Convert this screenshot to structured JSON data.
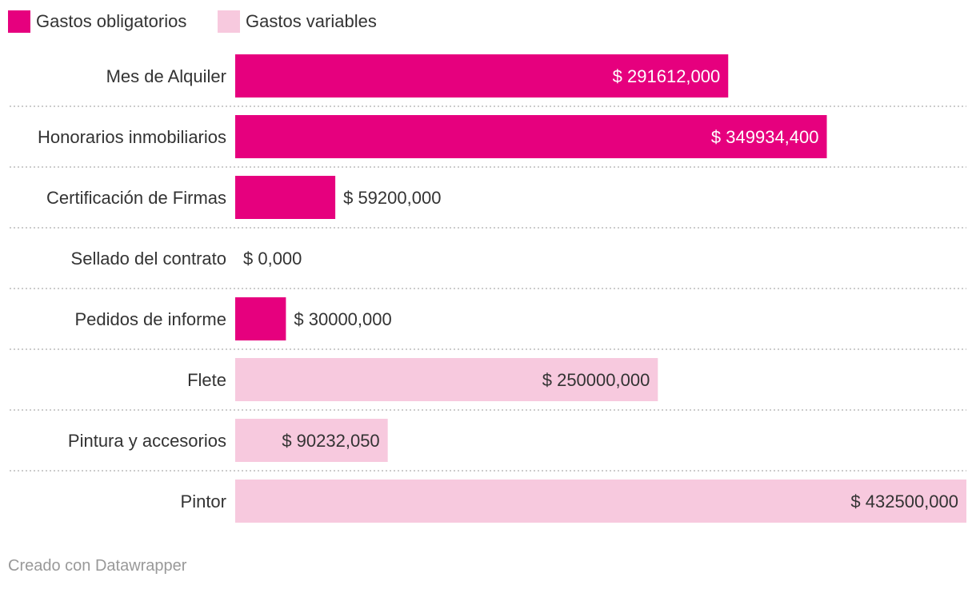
{
  "chart_data": {
    "type": "bar",
    "orientation": "horizontal",
    "legend_placement": "top-left",
    "grid": false,
    "xlim": [
      0,
      432500
    ],
    "series": [
      {
        "name": "Gastos obligatorios",
        "color": "#e6007e"
      },
      {
        "name": "Gastos variables",
        "color": "#f7c9de"
      }
    ],
    "rows": [
      {
        "label": "Mes de Alquiler",
        "value": 291612,
        "value_label": "$ 291612,000",
        "series": 0
      },
      {
        "label": "Honorarios inmobiliarios",
        "value": 349934.4,
        "value_label": "$ 349934,400",
        "series": 0
      },
      {
        "label": "Certificación de Firmas",
        "value": 59200,
        "value_label": "$ 59200,000",
        "series": 0
      },
      {
        "label": "Sellado del contrato",
        "value": 0,
        "value_label": "$ 0,000",
        "series": 0
      },
      {
        "label": "Pedidos de informe",
        "value": 30000,
        "value_label": "$ 30000,000",
        "series": 0
      },
      {
        "label": "Flete",
        "value": 250000,
        "value_label": "$ 250000,000",
        "series": 1
      },
      {
        "label": "Pintura y accesorios",
        "value": 90232.05,
        "value_label": "$ 90232,050",
        "series": 1
      },
      {
        "label": "Pintor",
        "value": 432500,
        "value_label": "$ 432500,000",
        "series": 1
      }
    ]
  },
  "footer": {
    "credit": "Creado con Datawrapper"
  }
}
